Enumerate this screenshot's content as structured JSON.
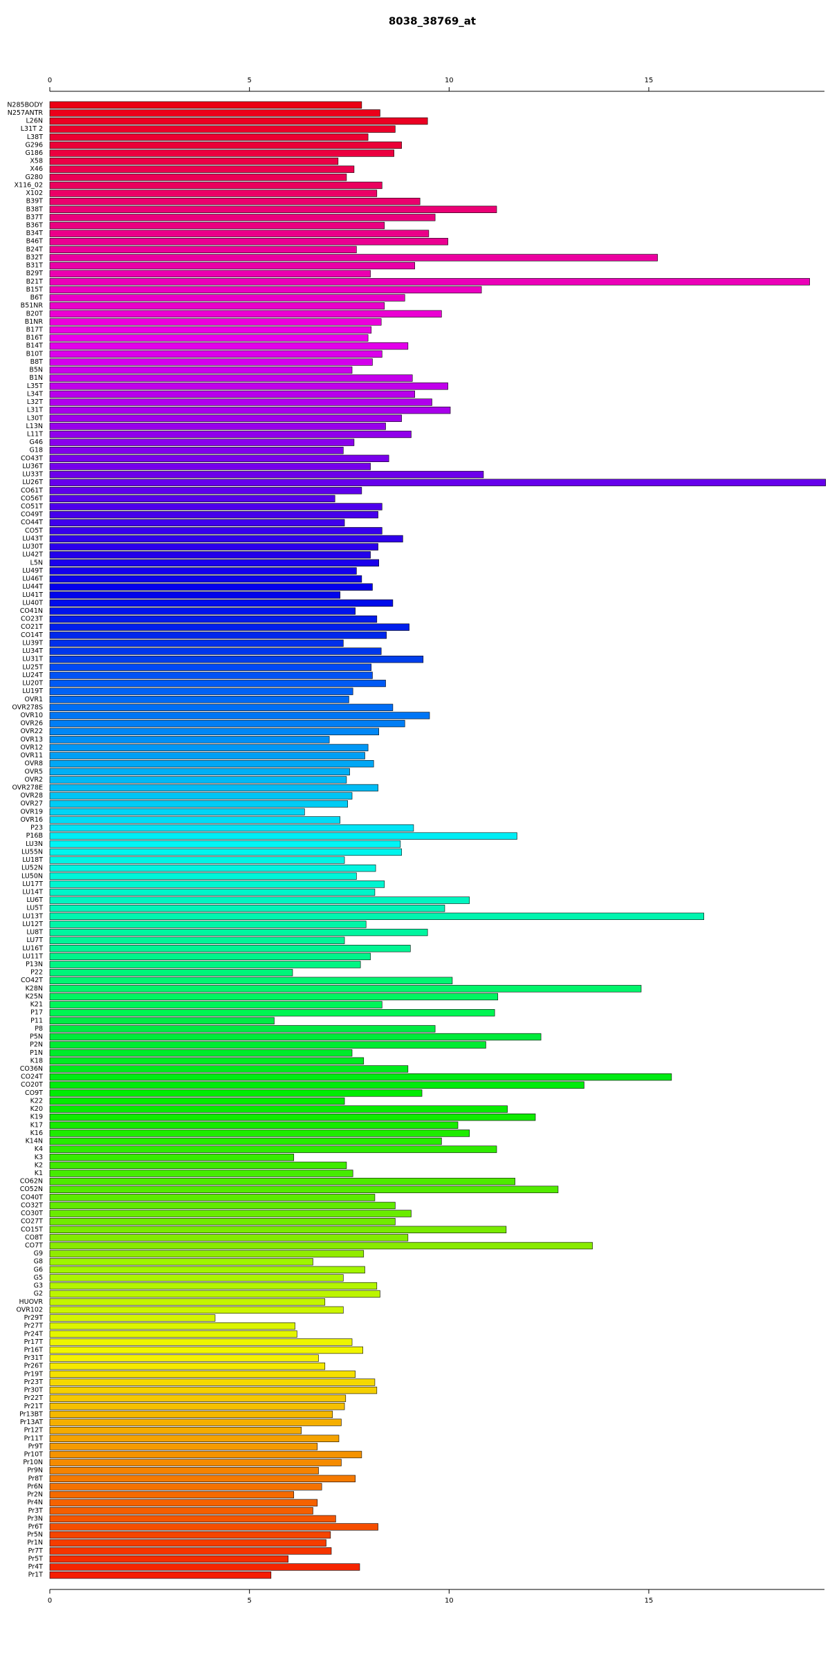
{
  "chart_data": {
    "type": "bar",
    "orientation": "horizontal",
    "title": "8038_38769_at",
    "categories": [
      "N285BODY",
      "N257ANTR",
      "L26N",
      "L31T 2",
      "L38T",
      "G296",
      "G186",
      "X58",
      "X46",
      "G280",
      "X116_02",
      "X102",
      "B39T",
      "B38T",
      "B37T",
      "B36T",
      "B34T",
      "B46T",
      "B24T",
      "B32T",
      "B31T",
      "B29T",
      "B21T",
      "B15T",
      "B6T",
      "B51NR",
      "B20T",
      "B1NR",
      "B17T",
      "B16T",
      "B14T",
      "B10T",
      "B8T",
      "B5N",
      "B1N",
      "L35T",
      "L34T",
      "L32T",
      "L31T",
      "L30T",
      "L13N",
      "L11T",
      "G46",
      "G18",
      "CO43T",
      "LU36T",
      "LU33T",
      "LU26T",
      "CO61T",
      "CO56T",
      "CO51T",
      "CO49T",
      "CO44T",
      "CO5T",
      "LU43T",
      "LU30T",
      "LU42T",
      "L5N",
      "LU49T",
      "LU46T",
      "LU44T",
      "LU41T",
      "LU40T",
      "CO41N",
      "CO23T",
      "CO21T",
      "CO14T",
      "LU39T",
      "LU34T",
      "LU31T",
      "LU25T",
      "LU24T",
      "LU20T",
      "LU19T",
      "OVR1",
      "OVR278S",
      "OVR10",
      "OVR26",
      "OVR22",
      "OVR13",
      "OVR12",
      "OVR11",
      "OVR8",
      "OVR5",
      "OVR2",
      "OVR278E",
      "OVR28",
      "OVR27",
      "OVR19",
      "OVR16",
      "P23",
      "P16B",
      "LU3N",
      "LU55N",
      "LU18T",
      "LU52N",
      "LU50N",
      "LU17T",
      "LU14T",
      "LU6T",
      "LU5T",
      "LU13T",
      "LU12T",
      "LU8T",
      "LU7T",
      "LU16T",
      "LU11T",
      "P13N",
      "P22",
      "CO42T",
      "K28N",
      "K25N",
      "K21",
      "P17",
      "P11",
      "P8",
      "P5N",
      "P2N",
      "P1N",
      "K18",
      "CO36N",
      "CO24T",
      "CO20T",
      "CO9T",
      "K22",
      "K20",
      "K19",
      "K17",
      "K16",
      "K14N",
      "K4",
      "K3",
      "K2",
      "K1",
      "CO62N",
      "CO52N",
      "CO40T",
      "CO32T",
      "CO30T",
      "CO27T",
      "CO15T",
      "CO8T",
      "CO7T",
      "G9",
      "G8",
      "G6",
      "G5",
      "G3",
      "G2",
      "HUOVR",
      "OVR102",
      "Pr29T",
      "Pr27T",
      "Pr24T",
      "Pr17T",
      "Pr16T",
      "Pr31T",
      "Pr26T",
      "Pr19T",
      "Pr23T",
      "Pr30T",
      "Pr22T",
      "Pr21T",
      "Pr13BT",
      "Pr13AT",
      "Pr12T",
      "Pr11T",
      "Pr9T",
      "Pr10T",
      "Pr10N",
      "Pr9N",
      "Pr8T",
      "Pr6N",
      "Pr2N",
      "Pr4N",
      "Pr3T",
      "Pr3N",
      "Pr6T",
      "Pr5N",
      "Pr1N",
      "Pr7T",
      "Pr5T",
      "Pr4T",
      "Pr1T"
    ],
    "values": [
      7.81,
      8.27,
      9.46,
      8.65,
      7.97,
      8.81,
      8.62,
      7.22,
      7.62,
      7.43,
      8.32,
      8.19,
      9.27,
      11.19,
      9.65,
      8.38,
      9.49,
      9.97,
      7.68,
      15.22,
      9.14,
      8.03,
      19.03,
      10.81,
      8.89,
      8.38,
      9.81,
      8.3,
      8.05,
      7.97,
      8.97,
      8.32,
      8.08,
      7.57,
      9.08,
      9.97,
      9.14,
      9.57,
      10.03,
      8.81,
      8.41,
      9.05,
      7.62,
      7.35,
      8.49,
      8.03,
      10.86,
      19.43,
      7.81,
      7.14,
      8.32,
      8.22,
      7.38,
      8.32,
      8.84,
      8.22,
      8.03,
      8.24,
      7.68,
      7.81,
      8.08,
      7.27,
      8.59,
      7.65,
      8.19,
      9.0,
      8.43,
      7.35,
      8.3,
      9.35,
      8.05,
      8.08,
      8.41,
      7.59,
      7.49,
      8.59,
      9.51,
      8.89,
      8.24,
      7.0,
      7.97,
      7.89,
      8.11,
      7.51,
      7.43,
      8.22,
      7.57,
      7.46,
      6.38,
      7.27,
      9.11,
      11.7,
      8.78,
      8.81,
      7.38,
      8.16,
      7.68,
      8.38,
      8.14,
      10.51,
      9.89,
      16.38,
      7.92,
      9.46,
      7.38,
      9.03,
      8.03,
      7.78,
      6.08,
      10.08,
      14.81,
      11.22,
      8.32,
      11.14,
      5.62,
      9.65,
      12.3,
      10.92,
      7.57,
      7.86,
      8.97,
      15.57,
      13.38,
      9.32,
      7.38,
      11.46,
      12.16,
      10.22,
      10.51,
      9.81,
      11.19,
      6.11,
      7.43,
      7.59,
      11.65,
      12.73,
      8.14,
      8.65,
      9.05,
      8.65,
      11.43,
      8.97,
      13.59,
      7.86,
      6.59,
      7.89,
      7.35,
      8.19,
      8.27,
      6.89,
      7.35,
      4.14,
      6.14,
      6.19,
      7.57,
      7.84,
      6.73,
      6.89,
      7.65,
      8.14,
      8.19,
      7.41,
      7.38,
      7.08,
      7.3,
      6.3,
      7.24,
      6.7,
      7.81,
      7.3,
      6.73,
      7.65,
      6.81,
      6.11,
      6.7,
      6.59,
      7.16,
      8.22,
      7.03,
      6.92,
      7.05,
      5.97,
      7.76,
      5.54
    ],
    "colors": [
      "hsl(355,100%,46%)",
      "hsl(353,100%,46%)",
      "hsl(351,100%,46%)",
      "hsl(349,100%,46%)",
      "hsl(347,100%,46%)",
      "hsl(346,100%,46%)",
      "hsl(344,100%,46%)",
      "hsl(342,100%,46%)",
      "hsl(340,100%,46%)",
      "hsl(338,100%,46%)",
      "hsl(336,100%,46%)",
      "hsl(334,100%,46%)",
      "hsl(332,100%,46%)",
      "hsl(330,100%,46%)",
      "hsl(328,100%,46%)",
      "hsl(327,100%,46%)",
      "hsl(325,100%,46%)",
      "hsl(323,100%,46%)",
      "hsl(321,100%,46%)",
      "hsl(319,100%,46%)",
      "hsl(317,100%,46%)",
      "hsl(315,100%,46%)",
      "hsl(313,100%,46%)",
      "hsl(311,100%,46%)",
      "hsl(309,100%,46%)",
      "hsl(308,100%,46%)",
      "hsl(306,100%,46%)",
      "hsl(304,100%,46%)",
      "hsl(302,100%,46%)",
      "hsl(300,100%,46%)",
      "hsl(298,100%,46%)",
      "hsl(296,100%,46%)",
      "hsl(294,100%,46%)",
      "hsl(292,100%,46%)",
      "hsl(290,100%,46%)",
      "hsl(289,100%,46%)",
      "hsl(287,100%,46%)",
      "hsl(285,100%,46%)",
      "hsl(283,100%,46%)",
      "hsl(281,100%,46%)",
      "hsl(279,100%,46%)",
      "hsl(277,100%,46%)",
      "hsl(275,100%,46%)",
      "hsl(273,100%,46%)",
      "hsl(271,100%,46%)",
      "hsl(270,100%,46%)",
      "hsl(268,100%,46%)",
      "hsl(266,100%,46%)",
      "hsl(264,100%,46%)",
      "hsl(262,100%,46%)",
      "hsl(260,100%,46%)",
      "hsl(258,100%,46%)",
      "hsl(256,100%,46%)",
      "hsl(254,100%,46%)",
      "hsl(252,100%,46%)",
      "hsl(251,100%,46%)",
      "hsl(249,100%,46%)",
      "hsl(247,100%,46%)",
      "hsl(245,100%,46%)",
      "hsl(243,100%,46%)",
      "hsl(241,100%,46%)",
      "hsl(239,100%,46%)",
      "hsl(237,100%,46%)",
      "hsl(235,100%,46%)",
      "hsl(233,100%,46%)",
      "hsl(232,100%,46%)",
      "hsl(230,100%,46%)",
      "hsl(228,100%,46%)",
      "hsl(226,100%,46%)",
      "hsl(224,100%,46%)",
      "hsl(222,100%,48%)",
      "hsl(220,100%,48%)",
      "hsl(218,100%,48%)",
      "hsl(216,100%,48%)",
      "hsl(214,100%,48%)",
      "hsl(213,100%,48%)",
      "hsl(211,100%,48%)",
      "hsl(209,100%,48%)",
      "hsl(207,100%,48%)",
      "hsl(205,100%,48%)",
      "hsl(203,100%,48%)",
      "hsl(201,100%,48%)",
      "hsl(199,100%,48%)",
      "hsl(197,100%,48%)",
      "hsl(195,100%,48%)",
      "hsl(194,100%,48%)",
      "hsl(192,100%,48%)",
      "hsl(190,100%,48%)",
      "hsl(188,100%,48%)",
      "hsl(186,100%,48%)",
      "hsl(184,100%,48%)",
      "hsl(182,100%,48%)",
      "hsl(180,100%,48%)",
      "hsl(178,100%,48%)",
      "hsl(176,100%,48%)",
      "hsl(175,100%,48%)",
      "hsl(173,100%,48%)",
      "hsl(171,100%,48%)",
      "hsl(169,100%,48%)",
      "hsl(167,100%,48%)",
      "hsl(165,100%,48%)",
      "hsl(163,100%,48%)",
      "hsl(161,100%,48%)",
      "hsl(159,100%,48%)",
      "hsl(157,100%,48%)",
      "hsl(156,100%,48%)",
      "hsl(154,100%,48%)",
      "hsl(152,100%,48%)",
      "hsl(150,100%,48%)",
      "hsl(148,100%,48%)",
      "hsl(146,100%,48%)",
      "hsl(144,100%,48%)",
      "hsl(142,100%,48%)",
      "hsl(140,100%,48%)",
      "hsl(138,100%,46%)",
      "hsl(137,100%,46%)",
      "hsl(135,100%,46%)",
      "hsl(133,100%,46%)",
      "hsl(131,100%,46%)",
      "hsl(129,100%,46%)",
      "hsl(127,100%,46%)",
      "hsl(125,100%,46%)",
      "hsl(123,100%,46%)",
      "hsl(121,100%,46%)",
      "hsl(119,100%,46%)",
      "hsl(118,100%,46%)",
      "hsl(116,100%,46%)",
      "hsl(114,100%,46%)",
      "hsl(112,100%,46%)",
      "hsl(110,100%,46%)",
      "hsl(108,100%,46%)",
      "hsl(106,100%,46%)",
      "hsl(104,100%,46%)",
      "hsl(102,100%,46%)",
      "hsl(100,100%,46%)",
      "hsl(99,100%,46%)",
      "hsl(97,100%,46%)",
      "hsl(95,100%,46%)",
      "hsl(93,100%,46%)",
      "hsl(91,100%,46%)",
      "hsl(89,100%,46%)",
      "hsl(87,100%,46%)",
      "hsl(85,100%,46%)",
      "hsl(83,100%,46%)",
      "hsl(81,100%,48%)",
      "hsl(80,100%,48%)",
      "hsl(78,100%,48%)",
      "hsl(76,100%,48%)",
      "hsl(74,100%,48%)",
      "hsl(72,100%,48%)",
      "hsl(70,100%,48%)",
      "hsl(68,100%,48%)",
      "hsl(66,100%,48%)",
      "hsl(64,100%,48%)",
      "hsl(62,100%,48%)",
      "hsl(61,100%,48%)",
      "hsl(59,100%,48%)",
      "hsl(57,100%,48%)",
      "hsl(55,100%,48%)",
      "hsl(53,100%,48%)",
      "hsl(51,100%,48%)",
      "hsl(49,100%,48%)",
      "hsl(47,100%,48%)",
      "hsl(45,100%,48%)",
      "hsl(43,100%,48%)",
      "hsl(42,100%,48%)",
      "hsl(40,100%,48%)",
      "hsl(38,100%,48%)",
      "hsl(36,100%,48%)",
      "hsl(34,100%,48%)",
      "hsl(32,100%,48%)",
      "hsl(30,100%,48%)",
      "hsl(28,100%,48%)",
      "hsl(26,100%,48%)",
      "hsl(24,100%,48%)",
      "hsl(23,100%,48%)",
      "hsl(21,100%,48%)",
      "hsl(19,100%,48%)",
      "hsl(17,100%,48%)",
      "hsl(15,100%,48%)",
      "hsl(13,100%,48%)",
      "hsl(11,100%,48%)",
      "hsl(9,100%,48%)",
      "hsl(7,100%,48%)"
    ],
    "xlim": [
      0,
      19.4
    ],
    "xticks": [
      0,
      5,
      10,
      15
    ]
  }
}
